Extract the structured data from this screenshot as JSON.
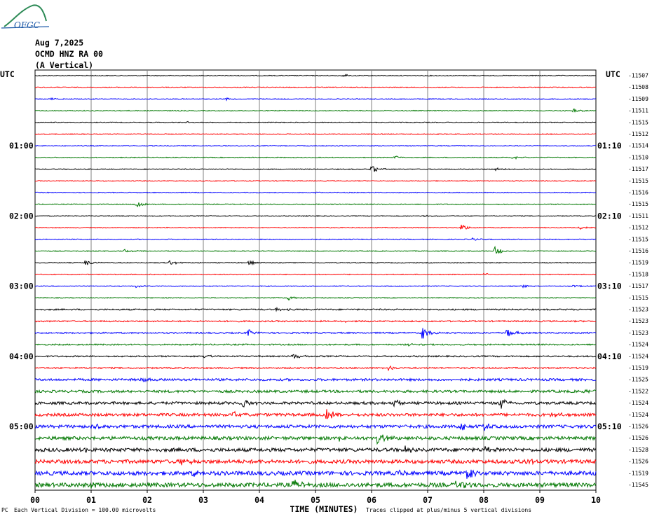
{
  "header": {
    "date": "Aug 7,2025",
    "station": "OCMD HNZ RA 00",
    "component": "(A Vertical)",
    "logo_text": "OFGC"
  },
  "footer": {
    "scale_note": "Each Vertical Division = 100.00 microvolts",
    "clip_note": "Traces clipped at plus/minus 5 vertical divisions",
    "corner_mark": "PC"
  },
  "chart_data": {
    "type": "seismogram",
    "title": "OCMD HNZ RA 00 (A Vertical)",
    "date": "Aug 7,2025",
    "xlabel": "TIME (MINUTES)",
    "x_ticks": [
      "00",
      "01",
      "02",
      "03",
      "04",
      "05",
      "06",
      "07",
      "08",
      "09",
      "10"
    ],
    "xlim": [
      0,
      10
    ],
    "left_axis_label": "UTC",
    "right_axis_label": "UTC",
    "left_time_labels": [
      {
        "row": 6,
        "label": "01:00"
      },
      {
        "row": 12,
        "label": "02:00"
      },
      {
        "row": 18,
        "label": "03:00"
      },
      {
        "row": 24,
        "label": "04:00"
      },
      {
        "row": 30,
        "label": "05:00"
      }
    ],
    "right_time_labels": [
      {
        "row": 6,
        "label": "01:10"
      },
      {
        "row": 12,
        "label": "02:10"
      },
      {
        "row": 18,
        "label": "03:10"
      },
      {
        "row": 24,
        "label": "04:10"
      },
      {
        "row": 30,
        "label": "05:10"
      }
    ],
    "trace_colors": [
      "#000000",
      "#ff0000",
      "#0000ff",
      "#007700"
    ],
    "trace_offsets": [
      -11507,
      -11508,
      -11509,
      -11511,
      -11515,
      -11512,
      -11514,
      -11510,
      -11517,
      -11515,
      -11516,
      -11515,
      -11511,
      -11512,
      -11515,
      -11516,
      -11519,
      -11518,
      -11517,
      -11515,
      -11523,
      -11523,
      -11523,
      -11524,
      -11524,
      -11519,
      -11525,
      -11522,
      -11524,
      -11524,
      -11526,
      -11526,
      -11528,
      -11526,
      -11519,
      -11545
    ],
    "events": [
      {
        "row": 0,
        "t": 5.5,
        "amp": 0.25
      },
      {
        "row": 2,
        "t": 0.3,
        "amp": 0.2
      },
      {
        "row": 2,
        "t": 3.4,
        "amp": 0.2
      },
      {
        "row": 3,
        "t": 9.6,
        "amp": 0.35
      },
      {
        "row": 4,
        "t": 2.7,
        "amp": 0.15
      },
      {
        "row": 7,
        "t": 6.4,
        "amp": 0.35
      },
      {
        "row": 7,
        "t": 8.5,
        "amp": 0.3
      },
      {
        "row": 8,
        "t": 6.0,
        "amp": 0.7
      },
      {
        "row": 8,
        "t": 8.2,
        "amp": 0.3
      },
      {
        "row": 10,
        "t": 5.0,
        "amp": 0.15
      },
      {
        "row": 11,
        "t": 1.8,
        "amp": 0.8
      },
      {
        "row": 12,
        "t": 6.9,
        "amp": 0.2
      },
      {
        "row": 13,
        "t": 7.6,
        "amp": 0.6
      },
      {
        "row": 13,
        "t": 9.7,
        "amp": 0.3
      },
      {
        "row": 14,
        "t": 7.8,
        "amp": 0.25
      },
      {
        "row": 15,
        "t": 1.6,
        "amp": 0.3
      },
      {
        "row": 15,
        "t": 8.2,
        "amp": 0.8
      },
      {
        "row": 16,
        "t": 0.9,
        "amp": 0.5
      },
      {
        "row": 16,
        "t": 2.4,
        "amp": 0.5
      },
      {
        "row": 16,
        "t": 3.8,
        "amp": 0.4
      },
      {
        "row": 17,
        "t": 8.0,
        "amp": 0.3
      },
      {
        "row": 18,
        "t": 1.8,
        "amp": 0.3
      },
      {
        "row": 18,
        "t": 8.7,
        "amp": 0.3
      },
      {
        "row": 18,
        "t": 9.6,
        "amp": 0.25
      },
      {
        "row": 19,
        "t": 4.5,
        "amp": 0.6
      },
      {
        "row": 20,
        "t": 4.3,
        "amp": 0.3
      },
      {
        "row": 21,
        "t": 5.5,
        "amp": 0.2
      },
      {
        "row": 22,
        "t": 3.8,
        "amp": 0.6
      },
      {
        "row": 22,
        "t": 6.9,
        "amp": 1.2
      },
      {
        "row": 22,
        "t": 8.4,
        "amp": 1.0
      },
      {
        "row": 23,
        "t": 6.6,
        "amp": 0.3
      },
      {
        "row": 24,
        "t": 4.6,
        "amp": 0.6
      },
      {
        "row": 24,
        "t": 3.0,
        "amp": 0.4
      },
      {
        "row": 25,
        "t": 6.3,
        "amp": 0.5
      },
      {
        "row": 26,
        "t": 1.9,
        "amp": 0.4
      },
      {
        "row": 27,
        "t": 9.8,
        "amp": 0.4
      },
      {
        "row": 28,
        "t": 3.7,
        "amp": 0.9
      },
      {
        "row": 28,
        "t": 6.4,
        "amp": 0.7
      },
      {
        "row": 28,
        "t": 8.3,
        "amp": 1.0
      },
      {
        "row": 29,
        "t": 5.2,
        "amp": 1.3
      },
      {
        "row": 29,
        "t": 3.5,
        "amp": 0.6
      },
      {
        "row": 29,
        "t": 9.2,
        "amp": 0.6
      },
      {
        "row": 30,
        "t": 1.0,
        "amp": 0.6
      },
      {
        "row": 30,
        "t": 8.0,
        "amp": 0.7
      },
      {
        "row": 30,
        "t": 7.6,
        "amp": 0.6
      },
      {
        "row": 31,
        "t": 6.1,
        "amp": 1.2
      },
      {
        "row": 31,
        "t": 5.4,
        "amp": 0.5
      },
      {
        "row": 32,
        "t": 0.9,
        "amp": 0.6
      },
      {
        "row": 32,
        "t": 6.6,
        "amp": 0.6
      },
      {
        "row": 32,
        "t": 8.0,
        "amp": 0.5
      },
      {
        "row": 33,
        "t": 2.6,
        "amp": 0.7
      },
      {
        "row": 33,
        "t": 8.7,
        "amp": 0.7
      },
      {
        "row": 34,
        "t": 2.8,
        "amp": 1.0
      },
      {
        "row": 34,
        "t": 7.7,
        "amp": 1.0
      },
      {
        "row": 34,
        "t": 6.5,
        "amp": 0.5
      },
      {
        "row": 35,
        "t": 4.6,
        "amp": 1.2
      },
      {
        "row": 35,
        "t": 7.5,
        "amp": 1.0
      },
      {
        "row": 35,
        "t": 1.0,
        "amp": 0.5
      }
    ]
  }
}
